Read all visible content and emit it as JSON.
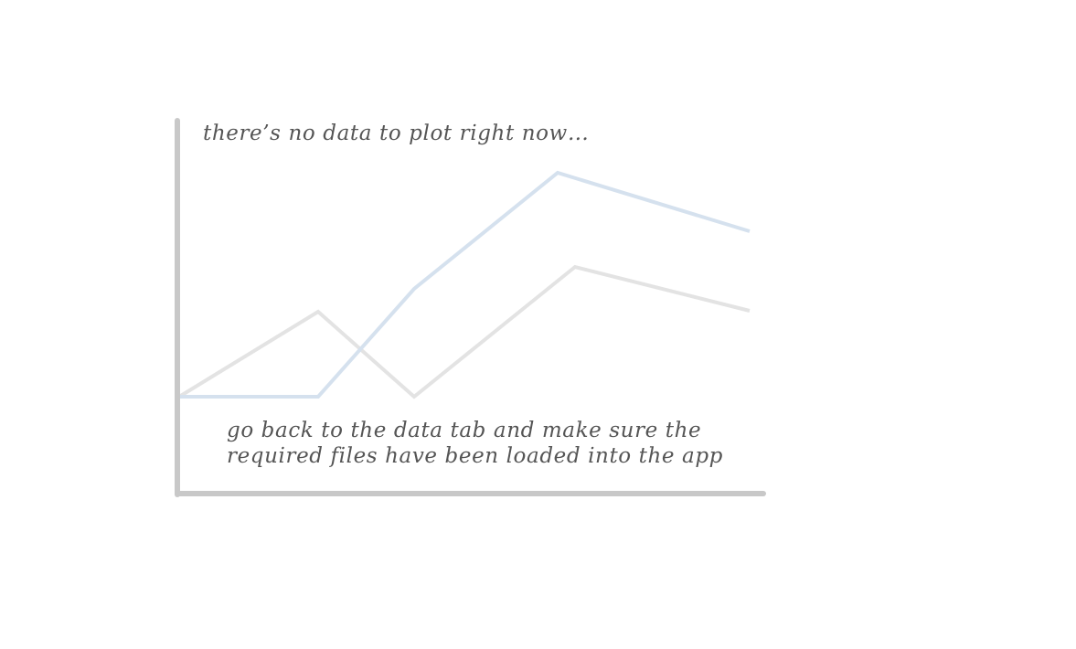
{
  "empty_state": {
    "title": "there’s no data to plot right now…",
    "hint_line_1": "go back to the data tab and make sure the",
    "hint_line_2": "required files have been loaded into the app"
  },
  "colors": {
    "axis": "#c8c8c8",
    "placeholder_line_blue": "#d5e1ee",
    "placeholder_line_grey": "#e3e3e3",
    "text": "#555555"
  }
}
